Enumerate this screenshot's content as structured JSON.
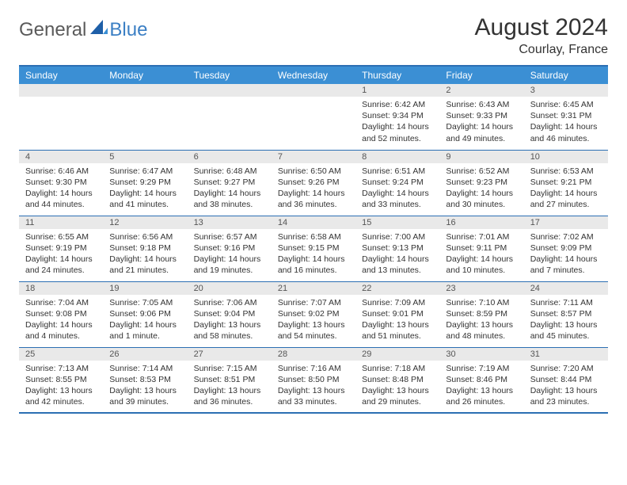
{
  "brand": {
    "text1": "General",
    "text2": "Blue"
  },
  "title": "August 2024",
  "location": "Courlay, France",
  "colors": {
    "header_bg": "#3b8fd4",
    "header_text": "#ffffff",
    "border": "#2c6fb3",
    "daynum_bg": "#e9e9e9",
    "body_text": "#333333",
    "brand_gray": "#5a5a5a",
    "brand_blue": "#3b7fc4"
  },
  "weekdays": [
    "Sunday",
    "Monday",
    "Tuesday",
    "Wednesday",
    "Thursday",
    "Friday",
    "Saturday"
  ],
  "weeks": [
    [
      {
        "num": "",
        "sunrise": "",
        "sunset": "",
        "daylight": ""
      },
      {
        "num": "",
        "sunrise": "",
        "sunset": "",
        "daylight": ""
      },
      {
        "num": "",
        "sunrise": "",
        "sunset": "",
        "daylight": ""
      },
      {
        "num": "",
        "sunrise": "",
        "sunset": "",
        "daylight": ""
      },
      {
        "num": "1",
        "sunrise": "Sunrise: 6:42 AM",
        "sunset": "Sunset: 9:34 PM",
        "daylight": "Daylight: 14 hours and 52 minutes."
      },
      {
        "num": "2",
        "sunrise": "Sunrise: 6:43 AM",
        "sunset": "Sunset: 9:33 PM",
        "daylight": "Daylight: 14 hours and 49 minutes."
      },
      {
        "num": "3",
        "sunrise": "Sunrise: 6:45 AM",
        "sunset": "Sunset: 9:31 PM",
        "daylight": "Daylight: 14 hours and 46 minutes."
      }
    ],
    [
      {
        "num": "4",
        "sunrise": "Sunrise: 6:46 AM",
        "sunset": "Sunset: 9:30 PM",
        "daylight": "Daylight: 14 hours and 44 minutes."
      },
      {
        "num": "5",
        "sunrise": "Sunrise: 6:47 AM",
        "sunset": "Sunset: 9:29 PM",
        "daylight": "Daylight: 14 hours and 41 minutes."
      },
      {
        "num": "6",
        "sunrise": "Sunrise: 6:48 AM",
        "sunset": "Sunset: 9:27 PM",
        "daylight": "Daylight: 14 hours and 38 minutes."
      },
      {
        "num": "7",
        "sunrise": "Sunrise: 6:50 AM",
        "sunset": "Sunset: 9:26 PM",
        "daylight": "Daylight: 14 hours and 36 minutes."
      },
      {
        "num": "8",
        "sunrise": "Sunrise: 6:51 AM",
        "sunset": "Sunset: 9:24 PM",
        "daylight": "Daylight: 14 hours and 33 minutes."
      },
      {
        "num": "9",
        "sunrise": "Sunrise: 6:52 AM",
        "sunset": "Sunset: 9:23 PM",
        "daylight": "Daylight: 14 hours and 30 minutes."
      },
      {
        "num": "10",
        "sunrise": "Sunrise: 6:53 AM",
        "sunset": "Sunset: 9:21 PM",
        "daylight": "Daylight: 14 hours and 27 minutes."
      }
    ],
    [
      {
        "num": "11",
        "sunrise": "Sunrise: 6:55 AM",
        "sunset": "Sunset: 9:19 PM",
        "daylight": "Daylight: 14 hours and 24 minutes."
      },
      {
        "num": "12",
        "sunrise": "Sunrise: 6:56 AM",
        "sunset": "Sunset: 9:18 PM",
        "daylight": "Daylight: 14 hours and 21 minutes."
      },
      {
        "num": "13",
        "sunrise": "Sunrise: 6:57 AM",
        "sunset": "Sunset: 9:16 PM",
        "daylight": "Daylight: 14 hours and 19 minutes."
      },
      {
        "num": "14",
        "sunrise": "Sunrise: 6:58 AM",
        "sunset": "Sunset: 9:15 PM",
        "daylight": "Daylight: 14 hours and 16 minutes."
      },
      {
        "num": "15",
        "sunrise": "Sunrise: 7:00 AM",
        "sunset": "Sunset: 9:13 PM",
        "daylight": "Daylight: 14 hours and 13 minutes."
      },
      {
        "num": "16",
        "sunrise": "Sunrise: 7:01 AM",
        "sunset": "Sunset: 9:11 PM",
        "daylight": "Daylight: 14 hours and 10 minutes."
      },
      {
        "num": "17",
        "sunrise": "Sunrise: 7:02 AM",
        "sunset": "Sunset: 9:09 PM",
        "daylight": "Daylight: 14 hours and 7 minutes."
      }
    ],
    [
      {
        "num": "18",
        "sunrise": "Sunrise: 7:04 AM",
        "sunset": "Sunset: 9:08 PM",
        "daylight": "Daylight: 14 hours and 4 minutes."
      },
      {
        "num": "19",
        "sunrise": "Sunrise: 7:05 AM",
        "sunset": "Sunset: 9:06 PM",
        "daylight": "Daylight: 14 hours and 1 minute."
      },
      {
        "num": "20",
        "sunrise": "Sunrise: 7:06 AM",
        "sunset": "Sunset: 9:04 PM",
        "daylight": "Daylight: 13 hours and 58 minutes."
      },
      {
        "num": "21",
        "sunrise": "Sunrise: 7:07 AM",
        "sunset": "Sunset: 9:02 PM",
        "daylight": "Daylight: 13 hours and 54 minutes."
      },
      {
        "num": "22",
        "sunrise": "Sunrise: 7:09 AM",
        "sunset": "Sunset: 9:01 PM",
        "daylight": "Daylight: 13 hours and 51 minutes."
      },
      {
        "num": "23",
        "sunrise": "Sunrise: 7:10 AM",
        "sunset": "Sunset: 8:59 PM",
        "daylight": "Daylight: 13 hours and 48 minutes."
      },
      {
        "num": "24",
        "sunrise": "Sunrise: 7:11 AM",
        "sunset": "Sunset: 8:57 PM",
        "daylight": "Daylight: 13 hours and 45 minutes."
      }
    ],
    [
      {
        "num": "25",
        "sunrise": "Sunrise: 7:13 AM",
        "sunset": "Sunset: 8:55 PM",
        "daylight": "Daylight: 13 hours and 42 minutes."
      },
      {
        "num": "26",
        "sunrise": "Sunrise: 7:14 AM",
        "sunset": "Sunset: 8:53 PM",
        "daylight": "Daylight: 13 hours and 39 minutes."
      },
      {
        "num": "27",
        "sunrise": "Sunrise: 7:15 AM",
        "sunset": "Sunset: 8:51 PM",
        "daylight": "Daylight: 13 hours and 36 minutes."
      },
      {
        "num": "28",
        "sunrise": "Sunrise: 7:16 AM",
        "sunset": "Sunset: 8:50 PM",
        "daylight": "Daylight: 13 hours and 33 minutes."
      },
      {
        "num": "29",
        "sunrise": "Sunrise: 7:18 AM",
        "sunset": "Sunset: 8:48 PM",
        "daylight": "Daylight: 13 hours and 29 minutes."
      },
      {
        "num": "30",
        "sunrise": "Sunrise: 7:19 AM",
        "sunset": "Sunset: 8:46 PM",
        "daylight": "Daylight: 13 hours and 26 minutes."
      },
      {
        "num": "31",
        "sunrise": "Sunrise: 7:20 AM",
        "sunset": "Sunset: 8:44 PM",
        "daylight": "Daylight: 13 hours and 23 minutes."
      }
    ]
  ]
}
